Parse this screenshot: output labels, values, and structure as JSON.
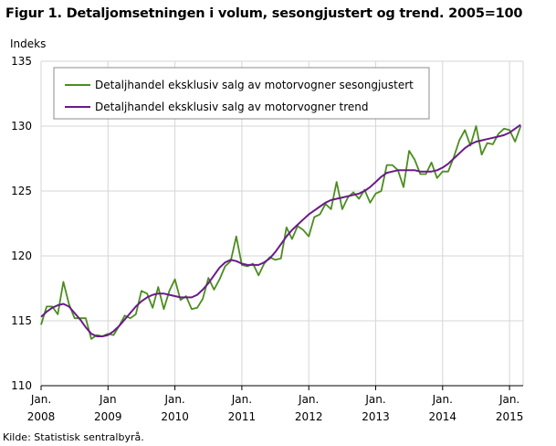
{
  "title": "Figur 1. Detaljomsetningen i volum, sesongjustert og trend. 2005=100",
  "source": "Kilde: Statistisk sentralbyrå.",
  "colors": {
    "seasonal": "#4b8d1f",
    "trend": "#6a1a8a",
    "grid": "#d6d6d6",
    "axis": "#000000"
  },
  "chart_data": {
    "type": "line",
    "title": "Figur 1. Detaljomsetningen i volum, sesongjustert og trend. 2005=100",
    "ylabel": "Indeks",
    "xlabel": "",
    "ylim": [
      110,
      135
    ],
    "yticks": [
      110,
      115,
      120,
      125,
      130,
      135
    ],
    "xticks": [
      {
        "top": "Jan.",
        "bottom": "2008"
      },
      {
        "top": "Jan",
        "bottom": "2009"
      },
      {
        "top": "Jan.",
        "bottom": "2010"
      },
      {
        "top": "Jan.",
        "bottom": "2011"
      },
      {
        "top": "Jan.",
        "bottom": "2012"
      },
      {
        "top": "Jan.",
        "bottom": "2013"
      },
      {
        "top": "Jan.",
        "bottom": "2014"
      },
      {
        "top": "Jan.",
        "bottom": "2015"
      }
    ],
    "x_start": "2008-01",
    "x_end": "2015-02",
    "grid": true,
    "legend_position": "top-left",
    "series": [
      {
        "name": "Detaljhandel eksklusiv salg av motorvogner sesongjustert",
        "color": "#4b8d1f",
        "values": [
          114.7,
          116.1,
          116.1,
          115.5,
          118.0,
          116.3,
          115.2,
          115.2,
          115.2,
          113.6,
          113.9,
          113.8,
          114.0,
          113.9,
          114.6,
          115.4,
          115.2,
          115.5,
          117.3,
          117.1,
          116.0,
          117.6,
          115.9,
          117.3,
          118.2,
          116.6,
          116.9,
          115.9,
          116.0,
          116.7,
          118.3,
          117.4,
          118.2,
          119.2,
          119.6,
          121.5,
          119.3,
          119.2,
          119.4,
          118.5,
          119.4,
          119.9,
          119.7,
          119.8,
          122.2,
          121.3,
          122.3,
          122.0,
          121.5,
          123.0,
          123.2,
          124.0,
          123.6,
          125.7,
          123.6,
          124.5,
          124.9,
          124.4,
          125.1,
          124.1,
          124.8,
          125.0,
          127.0,
          127.0,
          126.6,
          125.3,
          128.1,
          127.4,
          126.3,
          126.3,
          127.2,
          126.0,
          126.5,
          126.5,
          127.6,
          128.9,
          129.7,
          128.5,
          130.0,
          127.8,
          128.7,
          128.6,
          129.4,
          129.8,
          129.7,
          128.8,
          130.0
        ]
      },
      {
        "name": "Detaljhandel eksklusiv salg av motorvogner trend",
        "color": "#6a1a8a",
        "values": [
          115.3,
          115.7,
          116.0,
          116.2,
          116.3,
          116.1,
          115.6,
          115.1,
          114.5,
          114.0,
          113.8,
          113.8,
          113.9,
          114.2,
          114.6,
          115.1,
          115.6,
          116.1,
          116.5,
          116.8,
          117.0,
          117.1,
          117.1,
          117.0,
          116.9,
          116.8,
          116.8,
          116.8,
          117.0,
          117.4,
          117.9,
          118.5,
          119.1,
          119.5,
          119.7,
          119.6,
          119.4,
          119.3,
          119.3,
          119.3,
          119.5,
          119.8,
          120.3,
          120.9,
          121.5,
          122.0,
          122.4,
          122.8,
          123.2,
          123.5,
          123.8,
          124.1,
          124.3,
          124.4,
          124.5,
          124.6,
          124.7,
          124.8,
          125.0,
          125.3,
          125.7,
          126.1,
          126.4,
          126.5,
          126.6,
          126.6,
          126.6,
          126.6,
          126.5,
          126.5,
          126.5,
          126.6,
          126.8,
          127.1,
          127.5,
          127.9,
          128.3,
          128.6,
          128.8,
          128.9,
          129.0,
          129.1,
          129.2,
          129.3,
          129.5,
          129.8,
          130.1
        ]
      }
    ]
  }
}
